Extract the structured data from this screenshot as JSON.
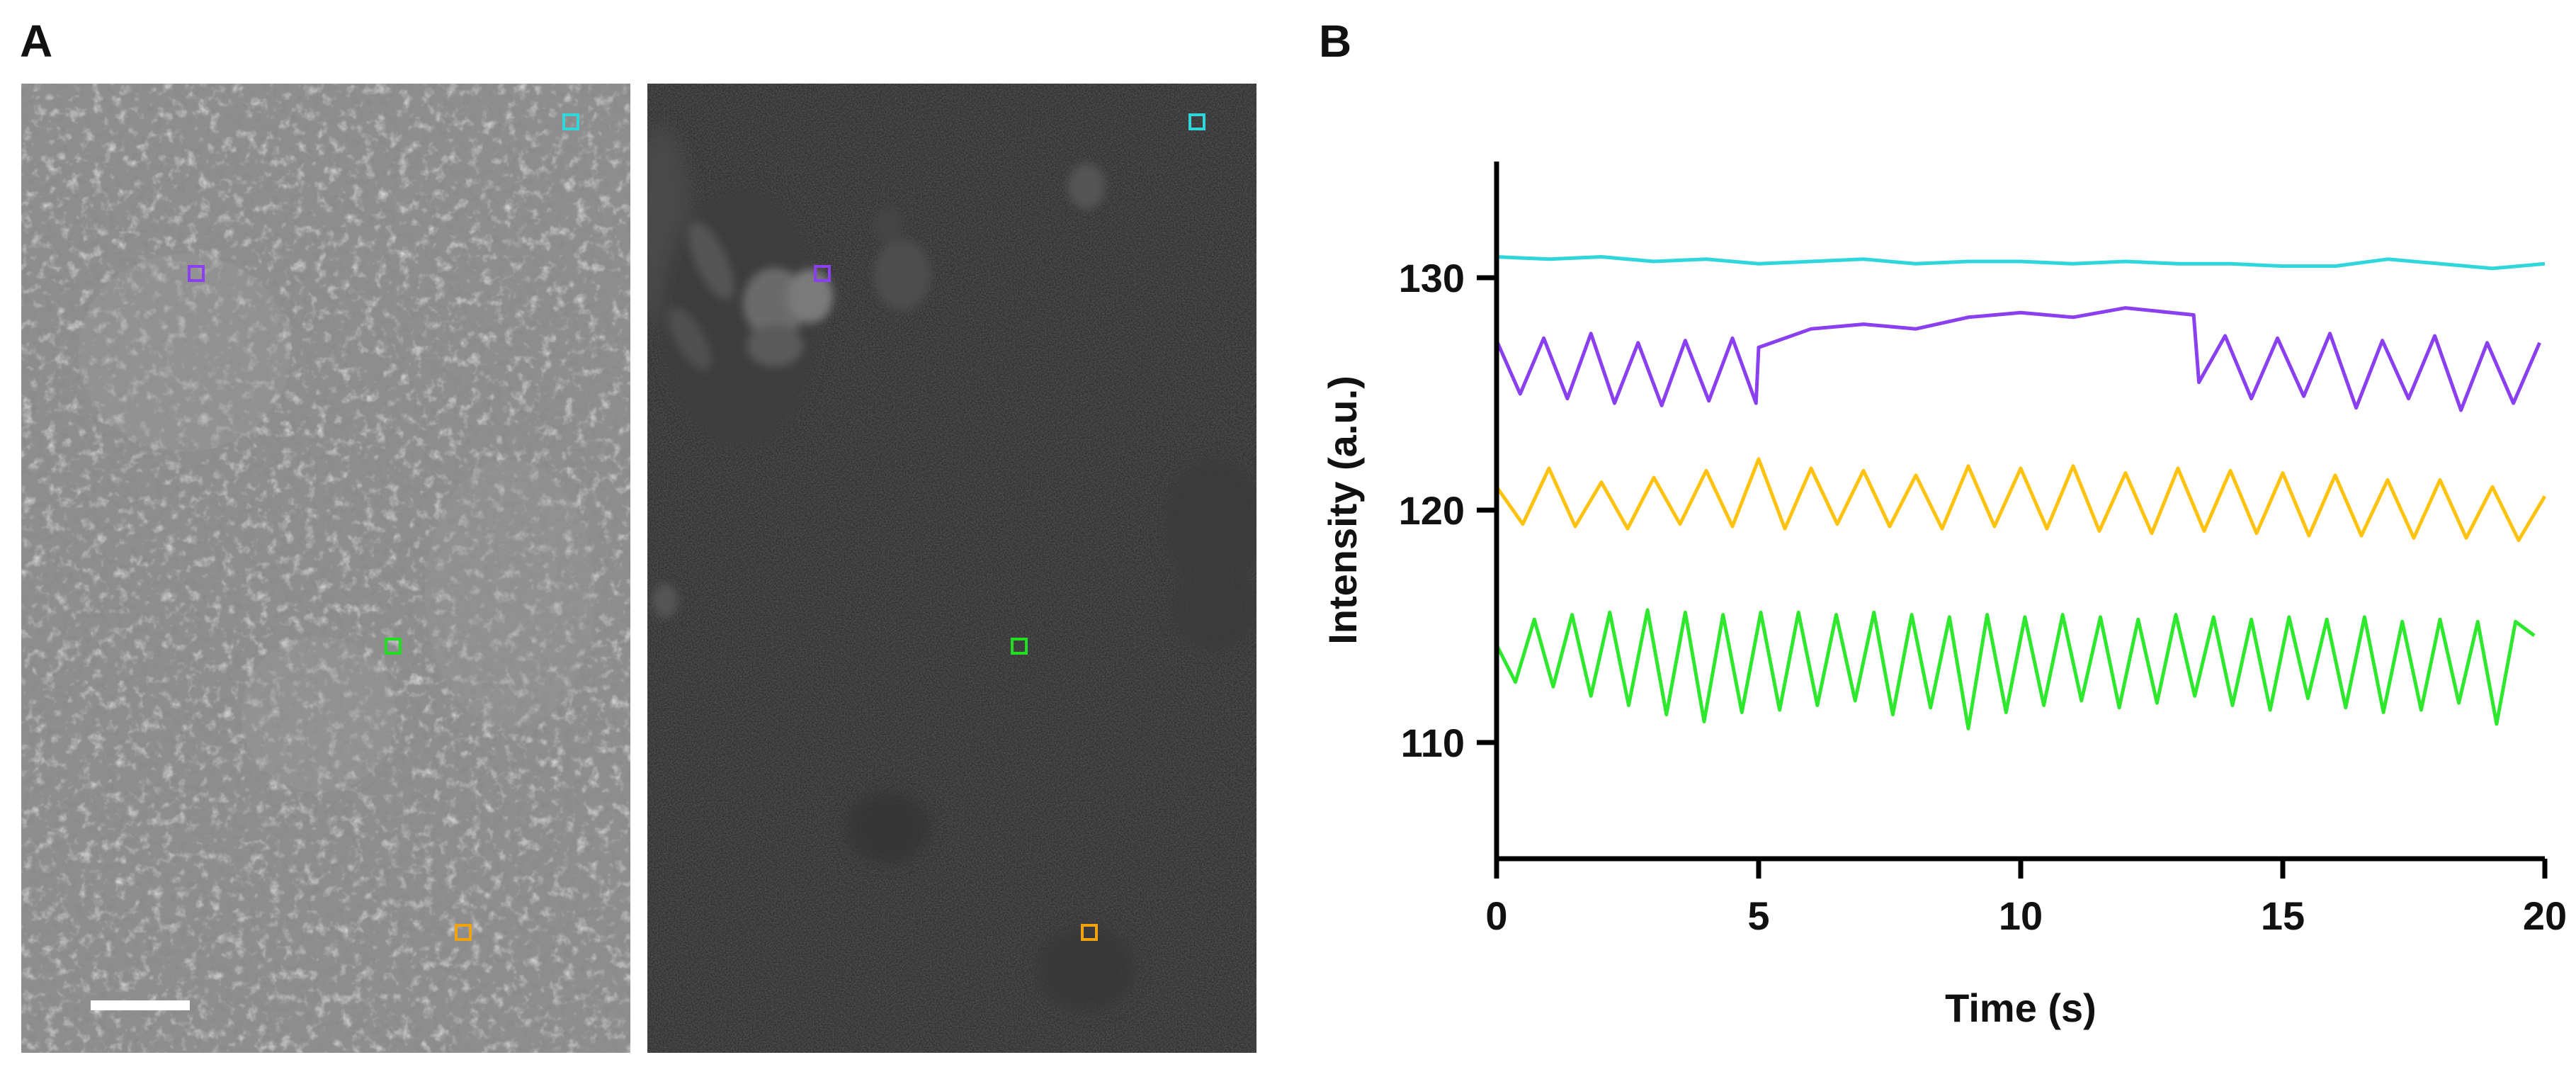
{
  "figure": {
    "panel_a_label": "A",
    "panel_b_label": "B"
  },
  "panel_a": {
    "images": [
      "brightfield-micrograph",
      "fluorescence-micrograph"
    ],
    "roi_colors": {
      "cyan": "#2fd6dc",
      "purple": "#8a3ff0",
      "green": "#22dd22",
      "orange": "#f2a20e"
    }
  },
  "chart_data": {
    "type": "line",
    "xlabel": "Time (s)",
    "ylabel": "Intensity (a.u.)",
    "xlim": [
      0,
      20
    ],
    "ylim": [
      105,
      135
    ],
    "xticks": [
      0,
      5,
      10,
      15,
      20
    ],
    "yticks": [
      110,
      120,
      130
    ],
    "grid": false,
    "legend": "none",
    "series": [
      {
        "color": "#2fd6dc",
        "x": [
          0,
          1,
          2,
          3,
          4,
          5,
          6,
          7,
          8,
          9,
          10,
          11,
          12,
          13,
          14,
          15,
          16,
          17,
          18,
          19,
          20
        ],
        "y": [
          130.9,
          130.8,
          130.9,
          130.7,
          130.8,
          130.6,
          130.7,
          130.8,
          130.6,
          130.7,
          130.7,
          130.6,
          130.7,
          130.6,
          130.6,
          130.5,
          130.5,
          130.8,
          130.6,
          130.4,
          130.6
        ]
      },
      {
        "color": "#8a3ff0",
        "x": [
          0,
          0.45,
          0.9,
          1.35,
          1.8,
          2.25,
          2.7,
          3.15,
          3.6,
          4.05,
          4.5,
          4.95,
          5.0,
          6,
          7,
          8,
          9,
          10,
          11,
          12,
          13.3,
          13.4,
          13.9,
          14.4,
          14.9,
          15.4,
          15.9,
          16.4,
          16.9,
          17.4,
          17.9,
          18.4,
          18.9,
          19.4,
          19.9
        ],
        "y": [
          127.3,
          125.0,
          127.4,
          124.8,
          127.6,
          124.6,
          127.2,
          124.5,
          127.3,
          124.7,
          127.4,
          124.6,
          127.0,
          127.8,
          128.0,
          127.8,
          128.3,
          128.5,
          128.3,
          128.7,
          128.4,
          125.5,
          127.5,
          124.8,
          127.4,
          124.9,
          127.6,
          124.4,
          127.3,
          124.8,
          127.5,
          124.3,
          127.2,
          124.6,
          127.2
        ]
      },
      {
        "color": "#ffc20e",
        "x": [
          0,
          0.5,
          1,
          1.5,
          2,
          2.5,
          3,
          3.5,
          4,
          4.5,
          5,
          5.5,
          6,
          6.5,
          7,
          7.5,
          8,
          8.5,
          9,
          9.5,
          10,
          10.5,
          11,
          11.5,
          12,
          12.5,
          13,
          13.5,
          14,
          14.5,
          15,
          15.5,
          16,
          16.5,
          17,
          17.5,
          18,
          18.5,
          19,
          19.5,
          20
        ],
        "y": [
          121.0,
          119.4,
          121.8,
          119.3,
          121.2,
          119.2,
          121.4,
          119.4,
          121.7,
          119.3,
          122.2,
          119.2,
          121.8,
          119.4,
          121.7,
          119.3,
          121.5,
          119.2,
          121.9,
          119.3,
          121.8,
          119.2,
          121.9,
          119.1,
          121.6,
          119.0,
          121.8,
          119.1,
          121.7,
          119.0,
          121.6,
          118.9,
          121.5,
          118.9,
          121.3,
          118.8,
          121.3,
          118.8,
          121.0,
          118.7,
          120.6
        ]
      },
      {
        "color": "#2ee82e",
        "x": [
          0,
          0.36,
          0.72,
          1.08,
          1.44,
          1.8,
          2.16,
          2.52,
          2.88,
          3.24,
          3.6,
          3.96,
          4.32,
          4.68,
          5.04,
          5.4,
          5.76,
          6.12,
          6.48,
          6.84,
          7.2,
          7.56,
          7.92,
          8.28,
          8.64,
          9.0,
          9.36,
          9.72,
          10.08,
          10.44,
          10.8,
          11.16,
          11.52,
          11.88,
          12.24,
          12.6,
          12.96,
          13.32,
          13.68,
          14.04,
          14.4,
          14.76,
          15.12,
          15.48,
          15.84,
          16.2,
          16.56,
          16.92,
          17.28,
          17.64,
          18.0,
          18.36,
          18.72,
          19.08,
          19.44,
          19.8
        ],
        "y": [
          114.2,
          112.6,
          115.3,
          112.4,
          115.5,
          112.0,
          115.6,
          111.6,
          115.7,
          111.2,
          115.6,
          110.9,
          115.5,
          111.3,
          115.6,
          111.4,
          115.6,
          111.6,
          115.5,
          111.8,
          115.6,
          111.2,
          115.5,
          111.5,
          115.4,
          110.6,
          115.5,
          111.3,
          115.4,
          111.6,
          115.5,
          111.8,
          115.4,
          111.5,
          115.3,
          111.7,
          115.5,
          112.0,
          115.4,
          111.6,
          115.3,
          111.4,
          115.4,
          111.9,
          115.3,
          111.5,
          115.4,
          111.3,
          115.2,
          111.4,
          115.3,
          111.7,
          115.2,
          110.8,
          115.2,
          114.6
        ]
      }
    ]
  }
}
